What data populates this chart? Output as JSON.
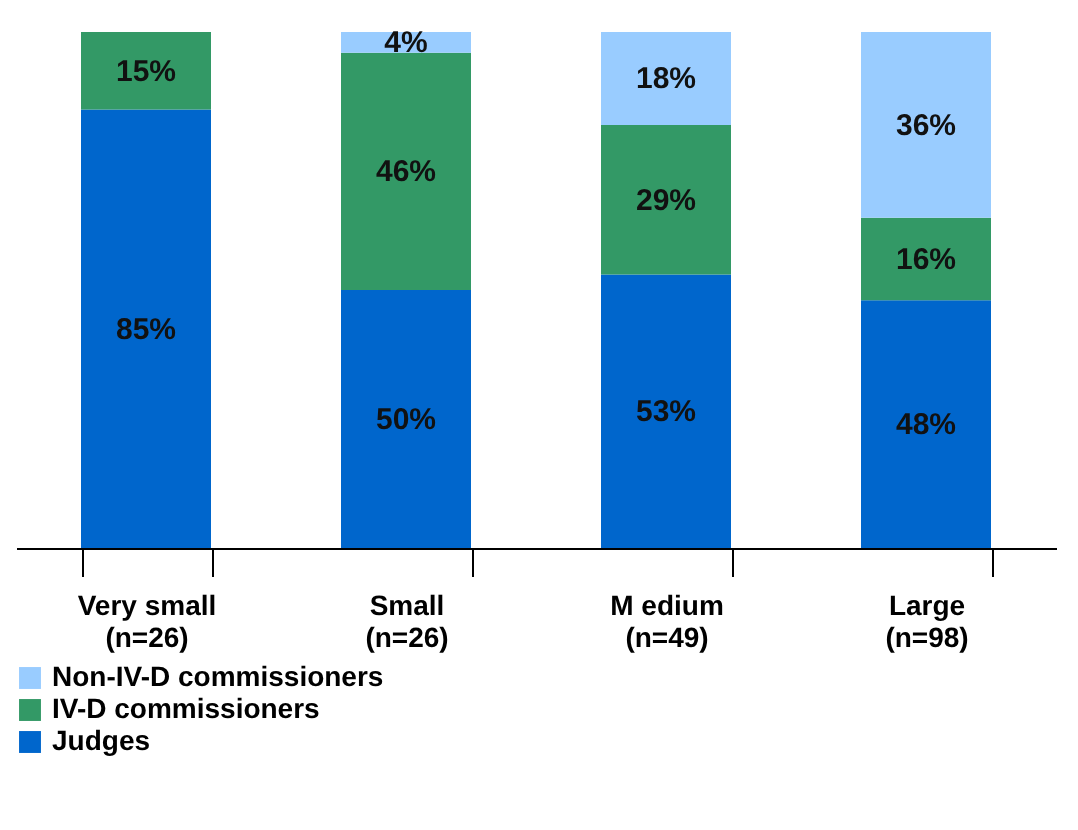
{
  "chart_data": {
    "type": "bar",
    "stacked": true,
    "categories": [
      "Very small\n(n=26)",
      "Small\n(n=26)",
      "M edium\n(n=49)",
      "Large\n(n=98)"
    ],
    "series": [
      {
        "name": "Judges",
        "color": "#0066cc",
        "values": [
          85,
          50,
          53,
          48
        ],
        "value_labels": [
          "85%",
          "50%",
          "53%",
          "48%"
        ]
      },
      {
        "name": "IV-D commissioners",
        "color": "#339966",
        "values": [
          15,
          46,
          29,
          16
        ],
        "value_labels": [
          "15%",
          "46%",
          "29%",
          "16%"
        ]
      },
      {
        "name": "Non-IV-D commissioners",
        "color": "#99ccff",
        "values": [
          null,
          4,
          18,
          36
        ],
        "value_labels": [
          null,
          "4%",
          "18%",
          "36%"
        ]
      }
    ],
    "legend": "bottom"
  }
}
